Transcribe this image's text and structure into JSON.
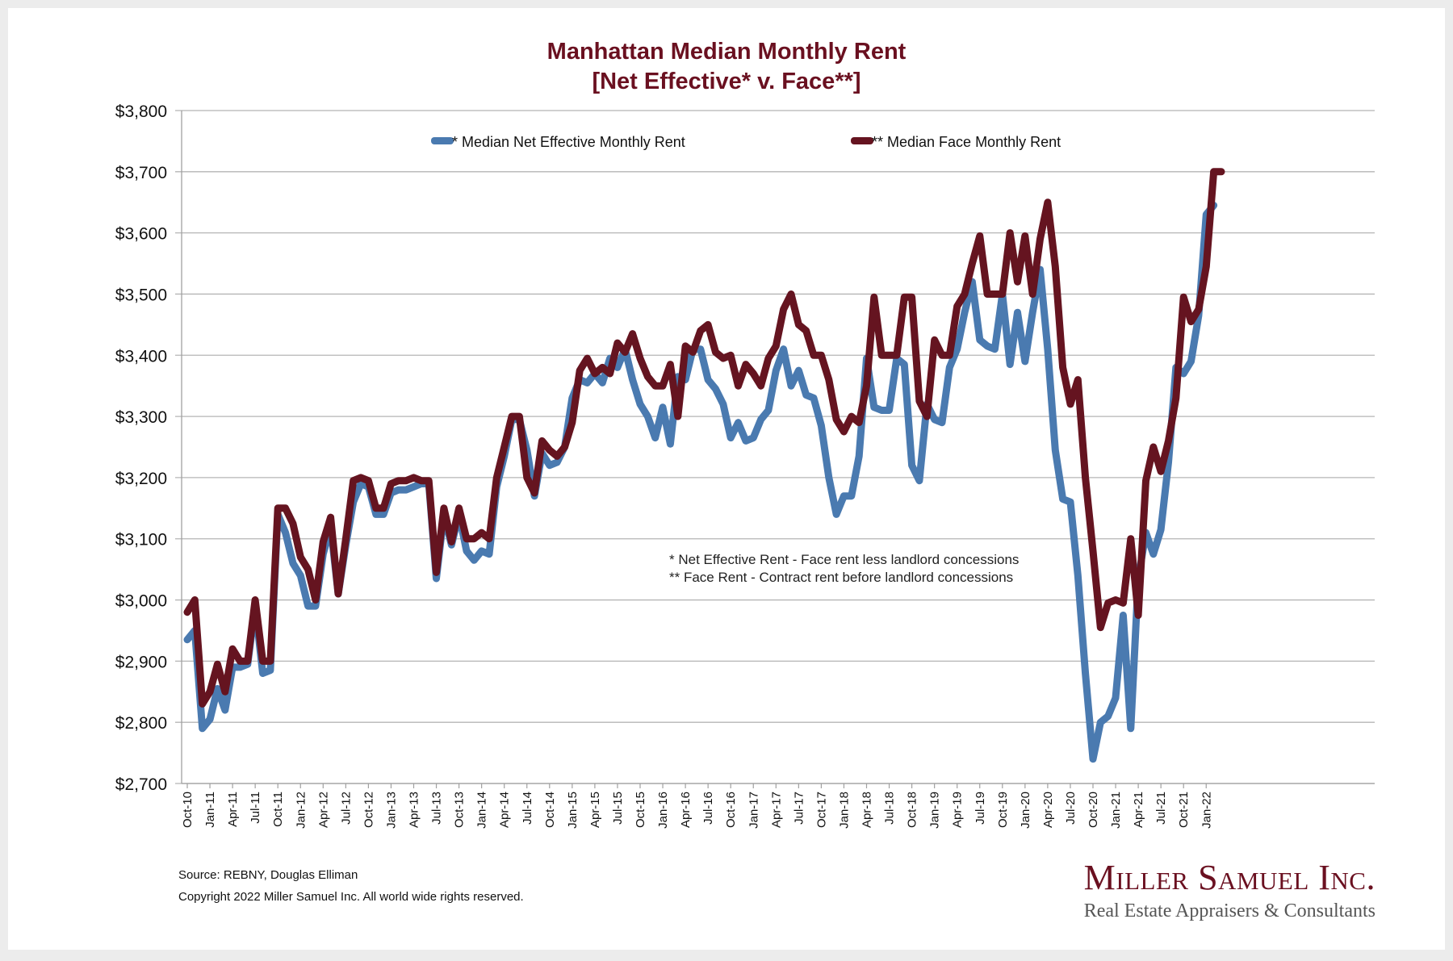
{
  "chart_data": {
    "type": "line",
    "title": "Manhattan Median Monthly Rent",
    "subtitle": "[Net Effective* v. Face**]",
    "xlabel": "",
    "ylabel": "",
    "ylim": [
      2700,
      3800
    ],
    "yticks": [
      2700,
      2800,
      2900,
      3000,
      3100,
      3200,
      3300,
      3400,
      3500,
      3600,
      3700,
      3800
    ],
    "ytick_labels": [
      "$2,700",
      "$2,800",
      "$2,900",
      "$3,000",
      "$3,100",
      "$3,200",
      "$3,300",
      "$3,400",
      "$3,500",
      "$3,600",
      "$3,700",
      "$3,800"
    ],
    "grid": true,
    "legend_position": "top",
    "x_tick_labels": [
      "Oct-10",
      "Jan-11",
      "Apr-11",
      "Jul-11",
      "Oct-11",
      "Jan-12",
      "Apr-12",
      "Jul-12",
      "Oct-12",
      "Jan-13",
      "Apr-13",
      "Jul-13",
      "Oct-13",
      "Jan-14",
      "Apr-14",
      "Jul-14",
      "Oct-14",
      "Jan-15",
      "Apr-15",
      "Jul-15",
      "Oct-15",
      "Jan-16",
      "Apr-16",
      "Jul-16",
      "Oct-16",
      "Jan-17",
      "Apr-17",
      "Jul-17",
      "Oct-17",
      "Jan-18",
      "Apr-18",
      "Jul-18",
      "Oct-18",
      "Jan-19",
      "Apr-19",
      "Jul-19",
      "Oct-19",
      "Jan-20",
      "Apr-20",
      "Jul-20",
      "Oct-20",
      "Jan-21",
      "Apr-21",
      "Jul-21",
      "Oct-21",
      "Jan-22"
    ],
    "x_start": "Oct-10",
    "x_end": "Mar-22",
    "x_frequency": "monthly",
    "series": [
      {
        "name": "* Median Net Effective Monthly Rent",
        "color": "#4a7ab0",
        "values": [
          2935,
          2950,
          2790,
          2805,
          2855,
          2820,
          2890,
          2890,
          2895,
          2990,
          2880,
          2885,
          3140,
          3110,
          3060,
          3040,
          2990,
          2990,
          3075,
          3120,
          3010,
          3090,
          3160,
          3190,
          3185,
          3140,
          3140,
          3175,
          3180,
          3180,
          3185,
          3190,
          3190,
          3035,
          3140,
          3090,
          3140,
          3080,
          3065,
          3080,
          3075,
          3185,
          3235,
          3295,
          3295,
          3245,
          3170,
          3240,
          3220,
          3225,
          3250,
          3330,
          3360,
          3355,
          3370,
          3355,
          3395,
          3380,
          3410,
          3360,
          3320,
          3300,
          3265,
          3315,
          3255,
          3365,
          3360,
          3410,
          3410,
          3360,
          3345,
          3320,
          3265,
          3290,
          3260,
          3265,
          3295,
          3310,
          3375,
          3410,
          3350,
          3375,
          3335,
          3330,
          3285,
          3200,
          3140,
          3170,
          3170,
          3235,
          3395,
          3315,
          3310,
          3310,
          3395,
          3385,
          3220,
          3195,
          3320,
          3295,
          3290,
          3380,
          3410,
          3470,
          3520,
          3425,
          3415,
          3410,
          3500,
          3385,
          3470,
          3390,
          3470,
          3540,
          3410,
          3245,
          3165,
          3160,
          3040,
          2880,
          2740,
          2800,
          2810,
          2840,
          2975,
          2790,
          3035,
          3110,
          3075,
          3115,
          3225,
          3380,
          3370,
          3390,
          3465,
          3630,
          3645
        ]
      },
      {
        "name": "** Median Face Monthly Rent",
        "color": "#651420",
        "values": [
          2980,
          3000,
          2830,
          2850,
          2895,
          2850,
          2920,
          2900,
          2900,
          3000,
          2900,
          2900,
          3150,
          3150,
          3125,
          3070,
          3050,
          3000,
          3095,
          3135,
          3010,
          3100,
          3195,
          3200,
          3195,
          3150,
          3150,
          3190,
          3195,
          3195,
          3200,
          3195,
          3195,
          3045,
          3150,
          3095,
          3150,
          3100,
          3100,
          3110,
          3100,
          3200,
          3250,
          3300,
          3300,
          3200,
          3175,
          3260,
          3245,
          3235,
          3250,
          3290,
          3375,
          3395,
          3370,
          3380,
          3370,
          3420,
          3405,
          3435,
          3395,
          3365,
          3350,
          3350,
          3385,
          3300,
          3415,
          3405,
          3440,
          3450,
          3405,
          3395,
          3400,
          3350,
          3385,
          3370,
          3350,
          3395,
          3415,
          3475,
          3500,
          3450,
          3440,
          3400,
          3400,
          3360,
          3295,
          3275,
          3300,
          3290,
          3350,
          3495,
          3400,
          3400,
          3400,
          3495,
          3495,
          3325,
          3300,
          3425,
          3400,
          3400,
          3480,
          3500,
          3550,
          3595,
          3500,
          3500,
          3500,
          3600,
          3520,
          3595,
          3500,
          3590,
          3650,
          3545,
          3380,
          3320,
          3360,
          3200,
          3080,
          2955,
          2995,
          3000,
          2995,
          3100,
          2975,
          3195,
          3250,
          3210,
          3260,
          3330,
          3495,
          3455,
          3475,
          3545,
          3700,
          3700
        ]
      }
    ],
    "annotations": [
      "* Net Effective Rent - Face rent less landlord concessions",
      "** Face Rent - Contract rent before landlord concessions"
    ]
  },
  "footer": {
    "source": "Source: REBNY, Douglas Elliman",
    "copyright": "Copyright 2022 Miller Samuel Inc.  All world wide rights reserved."
  },
  "logo": {
    "name": "Miller Samuel Inc.",
    "tagline": "Real Estate Appraisers & Consultants"
  }
}
